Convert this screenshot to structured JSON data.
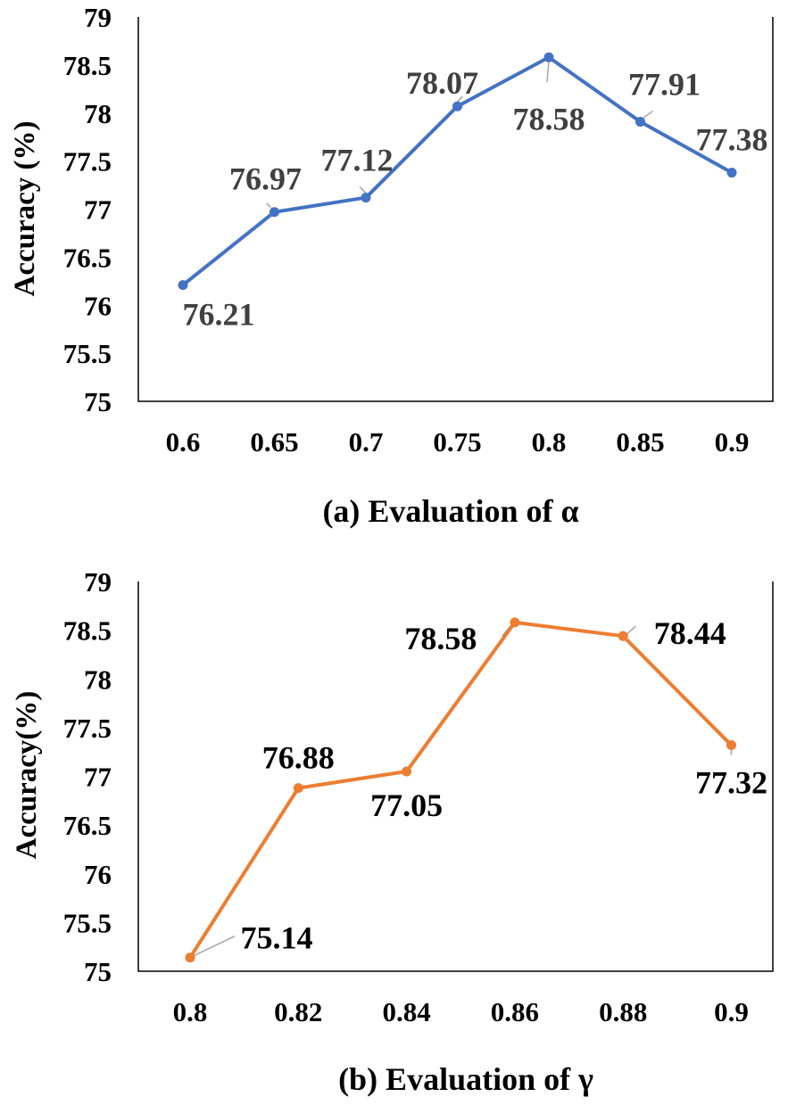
{
  "colors": {
    "series_a": "#4472C4",
    "series_b": "#ED7D31"
  },
  "chart_data": [
    {
      "type": "line",
      "caption": "(a) Evaluation of α",
      "xlabel": "",
      "ylabel": "Accuracy (%)",
      "categories": [
        "0.6",
        "0.65",
        "0.7",
        "0.75",
        "0.8",
        "0.85",
        "0.9"
      ],
      "values": [
        76.21,
        76.97,
        77.12,
        78.07,
        78.58,
        77.91,
        77.38
      ],
      "data_labels": [
        "76.21",
        "76.97",
        "77.12",
        "78.07",
        "78.58",
        "77.91",
        "77.38"
      ],
      "ylim": [
        75,
        79
      ],
      "yticks": [
        "75",
        "75.5",
        "76",
        "76.5",
        "77",
        "77.5",
        "78",
        "78.5",
        "79"
      ],
      "grid": false
    },
    {
      "type": "line",
      "caption": "(b) Evaluation of γ",
      "xlabel": "",
      "ylabel": "Accuracy(%)",
      "categories": [
        "0.8",
        "0.82",
        "0.84",
        "0.86",
        "0.88",
        "0.9"
      ],
      "values": [
        75.14,
        76.88,
        77.05,
        78.58,
        78.44,
        77.32
      ],
      "data_labels": [
        "75.14",
        "76.88",
        "77.05",
        "78.58",
        "78.44",
        "77.32"
      ],
      "ylim": [
        75,
        79
      ],
      "yticks": [
        "75",
        "75.5",
        "76",
        "76.5",
        "77",
        "77.5",
        "78",
        "78.5",
        "79"
      ],
      "grid": false
    }
  ]
}
